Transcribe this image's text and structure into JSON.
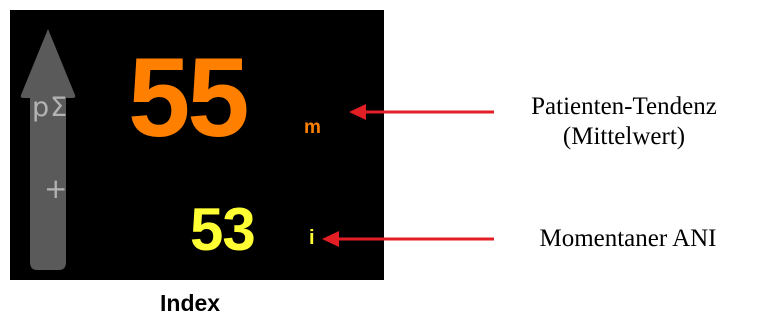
{
  "monitor": {
    "background_color": "#000000",
    "trend_arrow": {
      "icon": "trend-arrow-up-icon",
      "color": "#5a5a5a",
      "sum_symbol": "pΣ",
      "plus_symbol": "+"
    },
    "trend_value": {
      "value": "55",
      "unit": "m",
      "color": "#ff8000"
    },
    "instant_value": {
      "value": "53",
      "unit": "i",
      "color": "#ffff33"
    }
  },
  "annotations": {
    "pointer_color": "#e31e24",
    "trend_caption_line1": "Patienten-Tendenz",
    "trend_caption_line2": "(Mittelwert)",
    "instant_caption": "Momentaner ANI"
  },
  "footer": {
    "index_label": "Index"
  }
}
